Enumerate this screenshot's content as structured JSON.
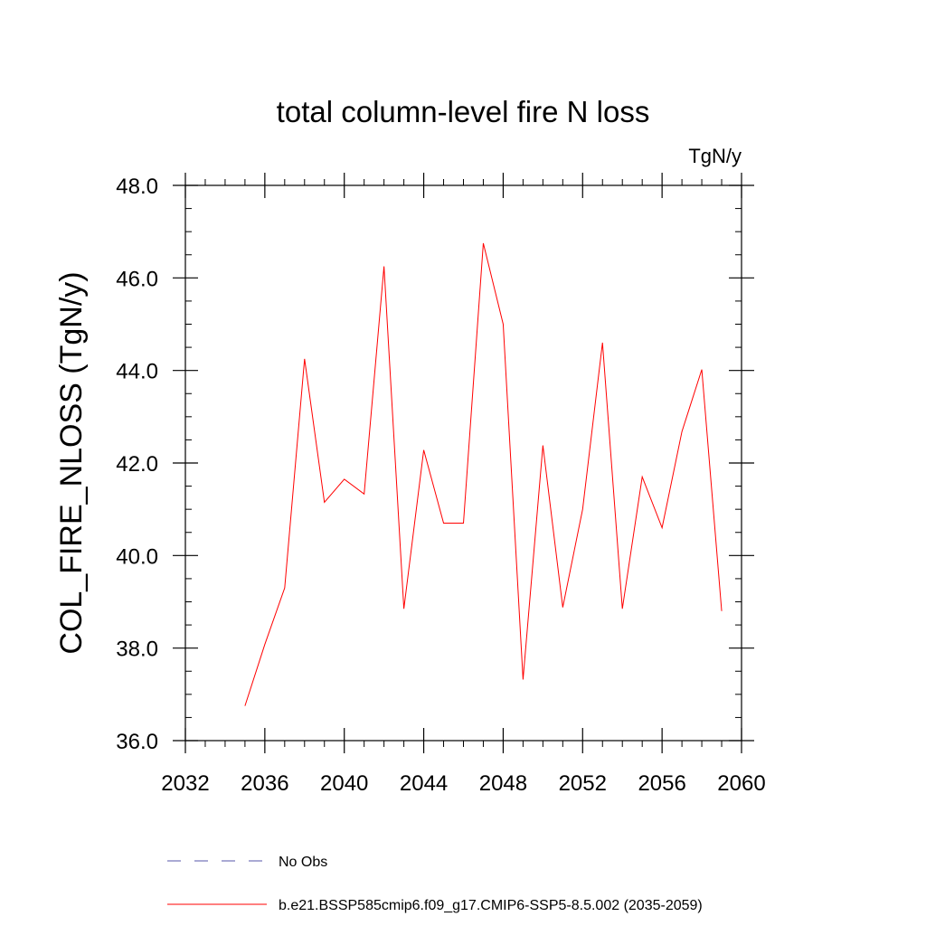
{
  "chart_data": {
    "type": "line",
    "title": "total column-level fire N loss",
    "units_label": "TgN/y",
    "xlabel": "",
    "ylabel": "COL_FIRE_NLOSS  (TgN/y)",
    "xlim": [
      2032,
      2060
    ],
    "ylim": [
      36.0,
      48.0
    ],
    "x_ticks": [
      2032,
      2036,
      2040,
      2044,
      2048,
      2052,
      2056,
      2060
    ],
    "x_tick_labels": [
      "2032",
      "2036",
      "2040",
      "2044",
      "2048",
      "2052",
      "2056",
      "2060"
    ],
    "y_ticks": [
      36.0,
      38.0,
      40.0,
      42.0,
      44.0,
      46.0,
      48.0
    ],
    "y_tick_labels": [
      "36.0",
      "38.0",
      "40.0",
      "42.0",
      "44.0",
      "46.0",
      "48.0"
    ],
    "x_minor_step": 1,
    "y_minor_step": 0.5,
    "grid": false,
    "legend_position": "bottom",
    "series": [
      {
        "name": "b.e21.BSSP585cmip6.f09_g17.CMIP6-SSP5-8.5.002 (2035-2059)",
        "color": "#ff0000",
        "line_style": "solid",
        "x": [
          2035,
          2036,
          2037,
          2038,
          2039,
          2040,
          2041,
          2042,
          2043,
          2044,
          2045,
          2046,
          2047,
          2048,
          2049,
          2050,
          2051,
          2052,
          2053,
          2054,
          2055,
          2056,
          2057,
          2058,
          2059
        ],
        "values": [
          36.75,
          38.08,
          39.3,
          44.25,
          41.15,
          41.65,
          41.33,
          46.25,
          38.85,
          42.28,
          40.7,
          40.7,
          46.75,
          45.0,
          37.32,
          42.38,
          38.88,
          41.0,
          44.6,
          38.85,
          41.7,
          40.6,
          42.68,
          44.02,
          38.8
        ]
      }
    ],
    "legend": [
      {
        "label": "No Obs",
        "color": "#5555aa",
        "line_style": "dashed"
      },
      {
        "label": "b.e21.BSSP585cmip6.f09_g17.CMIP6-SSP5-8.5.002 (2035-2059)",
        "color": "#ff0000",
        "line_style": "solid"
      }
    ]
  }
}
